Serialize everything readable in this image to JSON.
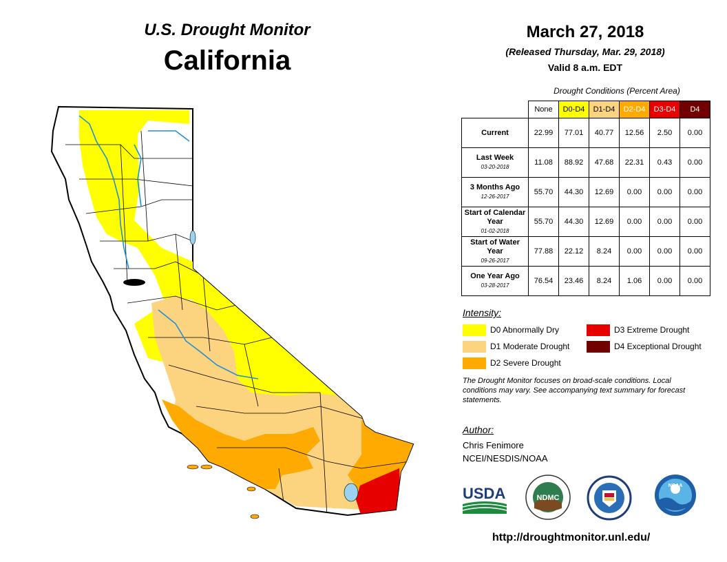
{
  "header": {
    "subtitle": "U.S. Drought Monitor",
    "state": "California",
    "date": "March 27, 2018",
    "released": "(Released Thursday, Mar. 29, 2018)",
    "valid": "Valid 8 a.m. EDT"
  },
  "table": {
    "caption": "Drought Conditions (Percent Area)",
    "columns": [
      {
        "label": "None",
        "color": "#ffffff",
        "text_color": "#000000"
      },
      {
        "label": "D0-D4",
        "color": "#ffff00",
        "text_color": "#000000"
      },
      {
        "label": "D1-D4",
        "color": "#fcd37f",
        "text_color": "#000000"
      },
      {
        "label": "D2-D4",
        "color": "#ffaa00",
        "text_color": "#ffffff"
      },
      {
        "label": "D3-D4",
        "color": "#e60000",
        "text_color": "#ffffff"
      },
      {
        "label": "D4",
        "color": "#730000",
        "text_color": "#ffffff"
      }
    ],
    "rows": [
      {
        "label": "Current",
        "date": "",
        "values": [
          "22.99",
          "77.01",
          "40.77",
          "12.56",
          "2.50",
          "0.00"
        ]
      },
      {
        "label": "Last Week",
        "date": "03-20-2018",
        "values": [
          "11.08",
          "88.92",
          "47.68",
          "22.31",
          "0.43",
          "0.00"
        ]
      },
      {
        "label": "3 Months Ago",
        "date": "12-26-2017",
        "values": [
          "55.70",
          "44.30",
          "12.69",
          "0.00",
          "0.00",
          "0.00"
        ]
      },
      {
        "label": "Start of Calendar Year",
        "date": "01-02-2018",
        "values": [
          "55.70",
          "44.30",
          "12.69",
          "0.00",
          "0.00",
          "0.00"
        ]
      },
      {
        "label": "Start of Water Year",
        "date": "09-26-2017",
        "values": [
          "77.88",
          "22.12",
          "8.24",
          "0.00",
          "0.00",
          "0.00"
        ]
      },
      {
        "label": "One Year Ago",
        "date": "03-28-2017",
        "values": [
          "76.54",
          "23.46",
          "8.24",
          "1.06",
          "0.00",
          "0.00"
        ]
      }
    ]
  },
  "legend": {
    "title": "Intensity:",
    "items": [
      {
        "label": "D0 Abnormally Dry",
        "color": "#ffff00"
      },
      {
        "label": "D1 Moderate Drought",
        "color": "#fcd37f"
      },
      {
        "label": "D2 Severe Drought",
        "color": "#ffaa00"
      },
      {
        "label": "D3 Extreme Drought",
        "color": "#e60000"
      },
      {
        "label": "D4 Exceptional Drought",
        "color": "#730000"
      }
    ]
  },
  "note": "The Drought Monitor focuses on broad-scale conditions. Local conditions may vary. See accompanying text summary for forecast statements.",
  "author": {
    "title": "Author:",
    "name": "Chris Fenimore",
    "org": "NCEI/NESDIS/NOAA"
  },
  "logos": {
    "usda": "USDA",
    "ndmc": "NDMC",
    "noaa": "NOAA"
  },
  "url": "http://droughtmonitor.unl.edu/"
}
